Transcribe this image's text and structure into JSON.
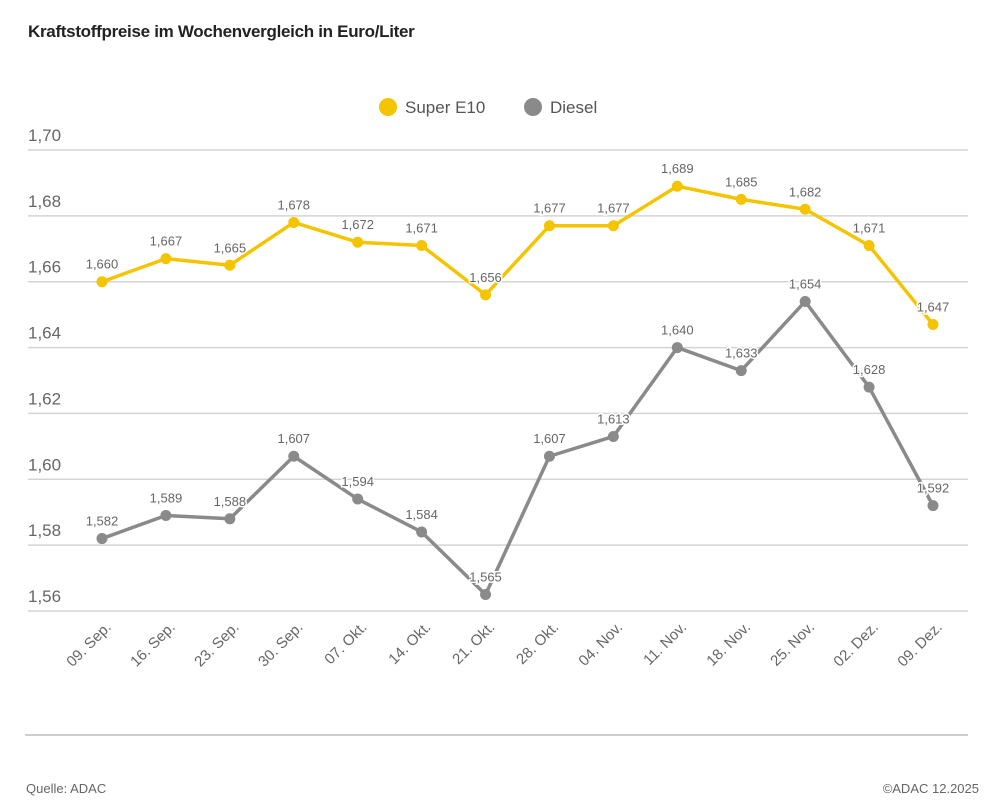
{
  "chart_data": {
    "type": "line",
    "title": "Kraftstoffpreise im Wochenvergleich in Euro/Liter",
    "categories": [
      "09. Sep.",
      "16. Sep.",
      "23. Sep.",
      "30. Sep.",
      "07. Okt.",
      "14. Okt.",
      "21. Okt.",
      "28. Okt.",
      "04. Nov.",
      "11. Nov.",
      "18. Nov.",
      "25. Nov.",
      "02. Dez.",
      "09. Dez."
    ],
    "series": [
      {
        "name": "Super E10",
        "color": "#f5c400",
        "values": [
          1.66,
          1.667,
          1.665,
          1.678,
          1.672,
          1.671,
          1.656,
          1.677,
          1.677,
          1.689,
          1.685,
          1.682,
          1.671,
          1.647
        ],
        "labels": [
          "1,660",
          "1,667",
          "1,665",
          "1,678",
          "1,672",
          "1,671",
          "1,656",
          "1,677",
          "1,677",
          "1,689",
          "1,685",
          "1,682",
          "1,671",
          "1,647"
        ]
      },
      {
        "name": "Diesel",
        "color": "#8a8a8a",
        "values": [
          1.582,
          1.589,
          1.588,
          1.607,
          1.594,
          1.584,
          1.565,
          1.607,
          1.613,
          1.64,
          1.633,
          1.654,
          1.628,
          1.592
        ],
        "labels": [
          "1,582",
          "1,589",
          "1,588",
          "1,607",
          "1,594",
          "1,584",
          "1,565",
          "1,607",
          "1,613",
          "1,640",
          "1,633",
          "1,654",
          "1,628",
          "1,592"
        ]
      }
    ],
    "yticks": [
      1.7,
      1.68,
      1.66,
      1.64,
      1.62,
      1.6,
      1.58,
      1.56
    ],
    "ytick_labels": [
      "1,70",
      "1,68",
      "1,66",
      "1,64",
      "1,62",
      "1,60",
      "1,58",
      "1,56"
    ],
    "ylim": [
      1.56,
      1.7
    ],
    "grid": true,
    "legend": "top-center"
  },
  "footer": {
    "source": "Quelle: ADAC",
    "copyright": "©ADAC 12.2025"
  }
}
